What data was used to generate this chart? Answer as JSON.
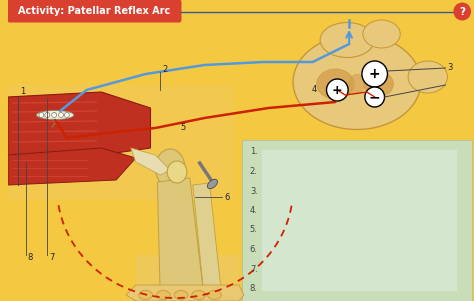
{
  "title": "Activity: Patellar Reflex Arc",
  "title_bg": "#d94030",
  "title_text_color": "#ffffff",
  "bg_color": "#f5c842",
  "separator_color": "#3a5a8c",
  "qmark_color": "#d94030",
  "blue_line": "#5599dd",
  "red_line": "#cc2200",
  "red_dot": "#cc2200",
  "green_box_bg": "#c8ddb8",
  "green_box_center": "#ddeedd",
  "spine_outer": "#e8c87a",
  "spine_border": "#c4963a",
  "spine_inner": "#d4a050",
  "muscle_red": "#c03020",
  "muscle_light": "#e04030",
  "bone_tan": "#dcc878",
  "bone_border": "#c0a040",
  "skin_tan": "#e8c870",
  "nerve_bg": "#f0d890",
  "label_color": "#222222",
  "line_color": "#444444",
  "white": "#ffffff",
  "black": "#000000",
  "body_bg_left": "#f5c842",
  "body_bg_right": "#f5c842"
}
